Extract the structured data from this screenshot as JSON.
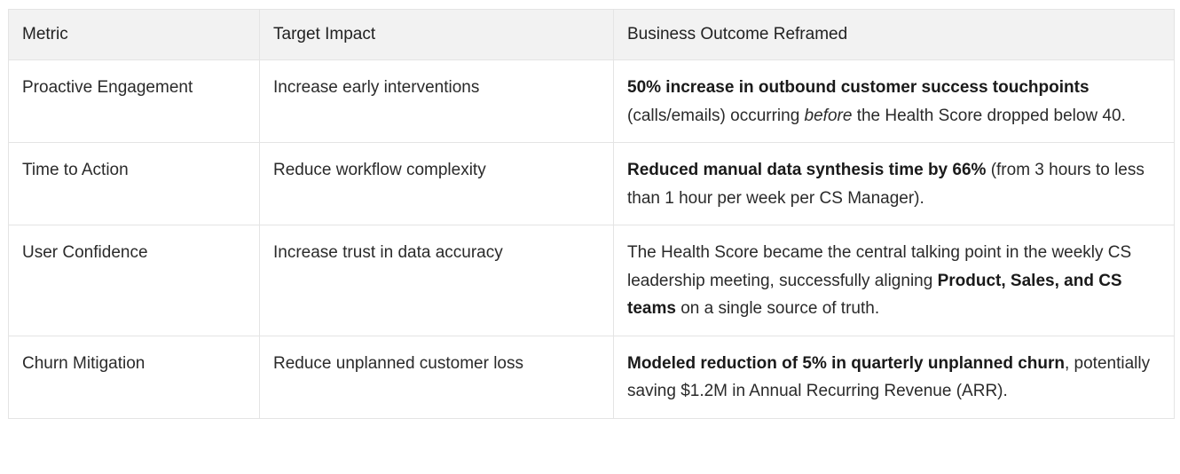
{
  "table": {
    "headers": [
      "Metric",
      "Target Impact",
      "Business Outcome Reframed"
    ],
    "rows": [
      {
        "metric": "Proactive Engagement",
        "target": "Increase early interventions",
        "outcome": [
          {
            "t": "50% increase in outbound customer success touchpoints",
            "s": "bold"
          },
          {
            "t": " (calls/emails) occurring ",
            "s": "normal"
          },
          {
            "t": "before",
            "s": "italic"
          },
          {
            "t": " the Health Score dropped below 40.",
            "s": "normal"
          }
        ]
      },
      {
        "metric": "Time to Action",
        "target": "Reduce workflow complexity",
        "outcome": [
          {
            "t": "Reduced manual data synthesis time by 66%",
            "s": "bold"
          },
          {
            "t": " (from 3 hours to less than 1 hour per week per CS Manager).",
            "s": "normal"
          }
        ]
      },
      {
        "metric": "User Confidence",
        "target": "Increase trust in data accuracy",
        "outcome": [
          {
            "t": "The Health Score became the central talking point in the weekly CS leadership meeting, successfully aligning ",
            "s": "normal"
          },
          {
            "t": "Product, Sales, and CS teams",
            "s": "bold"
          },
          {
            "t": " on a single source of truth.",
            "s": "normal"
          }
        ]
      },
      {
        "metric": "Churn Mitigation",
        "target": "Reduce unplanned customer loss",
        "outcome": [
          {
            "t": "Modeled reduction of 5% in quarterly unplanned churn",
            "s": "bold"
          },
          {
            "t": ", potentially saving $1.2M in Annual Recurring Revenue (ARR).",
            "s": "normal"
          }
        ]
      }
    ]
  }
}
